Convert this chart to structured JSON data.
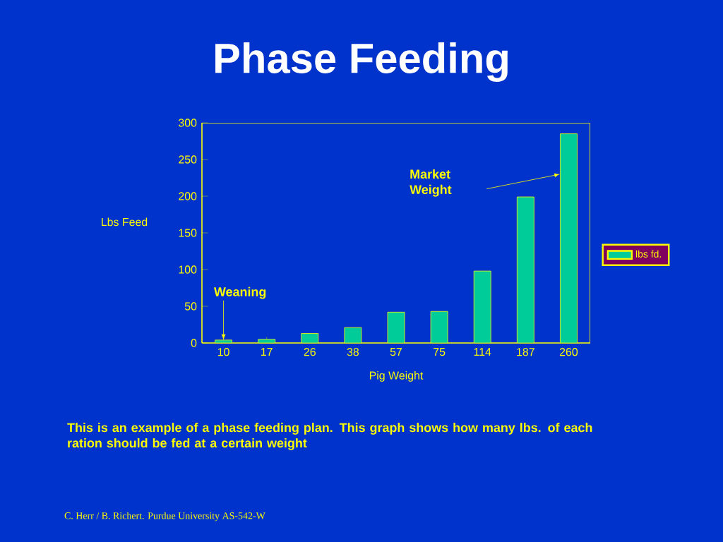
{
  "chart_data": {
    "type": "bar",
    "title": "Phase Feeding",
    "xlabel": "Pig Weight",
    "ylabel": "Lbs Feed",
    "categories": [
      "10",
      "17",
      "26",
      "38",
      "57",
      "75",
      "114",
      "187",
      "260"
    ],
    "series": [
      {
        "name": "lbs fd.",
        "color": "#00cc99",
        "values": [
          4,
          5,
          13,
          21,
          42,
          43,
          98,
          199,
          285
        ]
      }
    ],
    "ylim": [
      0,
      300
    ],
    "yticks": [
      0,
      50,
      100,
      150,
      200,
      250,
      300
    ],
    "grid": false,
    "legend": "right",
    "annotations": [
      {
        "text": "Weaning",
        "x": "10",
        "y": 4
      },
      "Market Weight",
      "This is an example of a phase feeding plan.  This graph shows how many lbs. of each ration should be fed at a certain weight",
      "C. Herr / B. Richert. Purdue University AS-542-W"
    ]
  }
}
